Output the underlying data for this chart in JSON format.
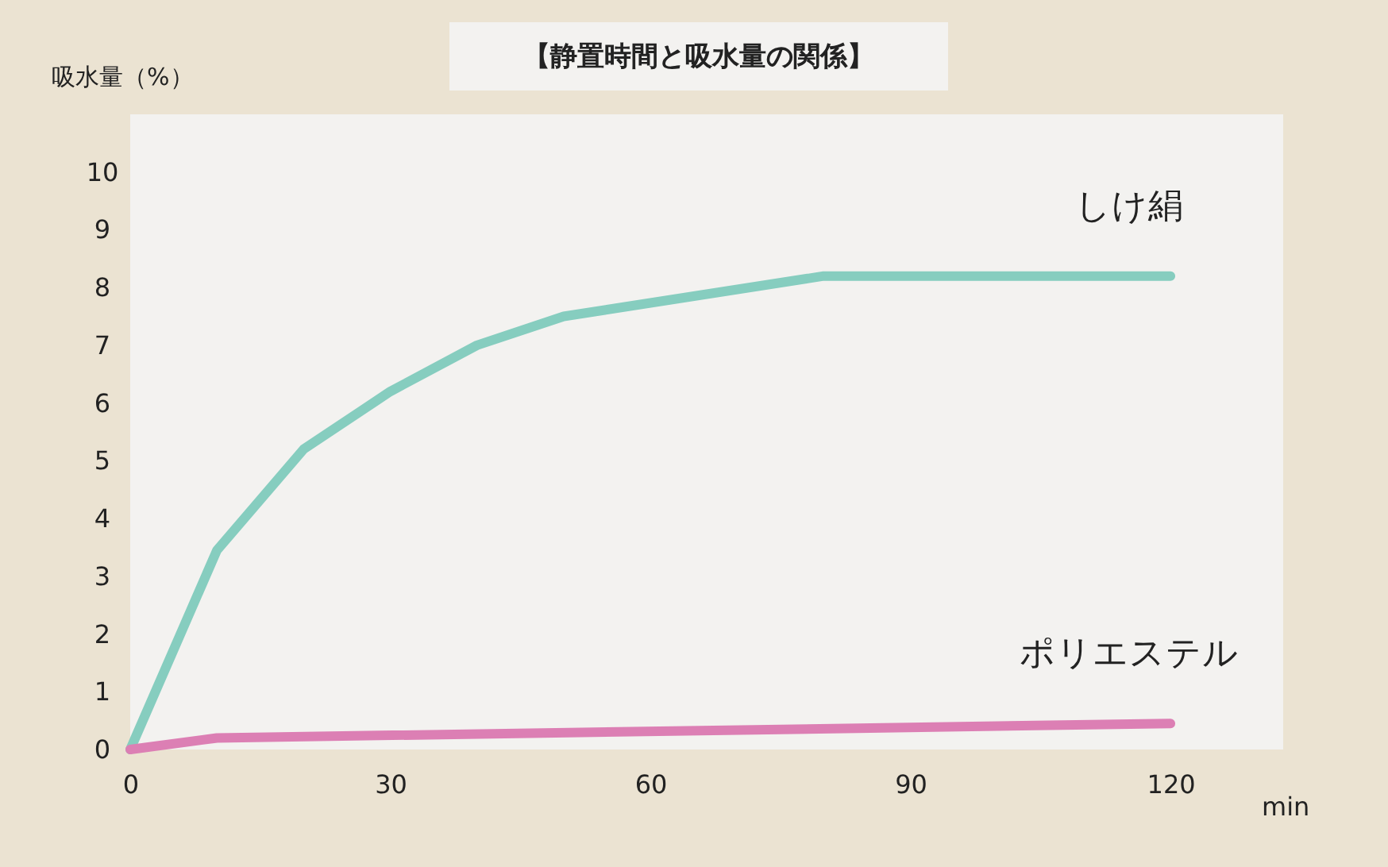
{
  "chart_data": {
    "type": "line",
    "title": "【静置時間と吸水量の関係】",
    "xlabel": "min",
    "ylabel": "吸水量（%）",
    "series": [
      {
        "name": "しけ絹",
        "color": "#86cdbf",
        "x": [
          0,
          10,
          20,
          30,
          40,
          50,
          80,
          120
        ],
        "values": [
          0,
          3.45,
          5.2,
          6.2,
          7.0,
          7.5,
          8.2,
          8.2
        ]
      },
      {
        "name": "ポリエステル",
        "color": "#dc7fb4",
        "x": [
          0,
          10,
          120
        ],
        "values": [
          0,
          0.2,
          0.45
        ]
      }
    ],
    "xlim": [
      0,
      133
    ],
    "xticks": [
      0,
      30,
      60,
      90,
      120
    ],
    "ylim": [
      0,
      11
    ],
    "yticks": [
      0,
      1,
      2,
      3,
      4,
      5,
      6,
      7,
      8,
      9,
      10
    ],
    "grid": false,
    "legend": false,
    "marker": "none",
    "line_style": "solid"
  }
}
